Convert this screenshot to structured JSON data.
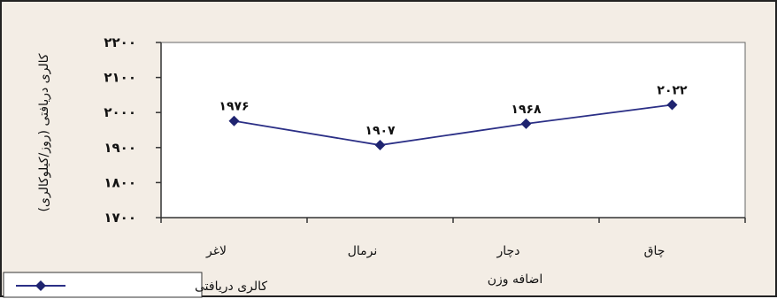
{
  "chart_data": {
    "type": "line",
    "categories": [
      "لاغر",
      "نرمال",
      "دچار",
      "چاق"
    ],
    "series": [
      {
        "name": "کالری دریافتی",
        "values": [
          1976,
          1907,
          1968,
          2022
        ],
        "labels": [
          "۱۹۷۶",
          "۱۹۰۷",
          "۱۹۶۸",
          "۲۰۲۲"
        ]
      }
    ],
    "yticks": [
      {
        "value": 1700,
        "label": "۱۷۰۰"
      },
      {
        "value": 1800,
        "label": "۱۸۰۰"
      },
      {
        "value": 1900,
        "label": "۱۹۰۰"
      },
      {
        "value": 2000,
        "label": "۲۰۰۰"
      },
      {
        "value": 2100,
        "label": "۲۱۰۰"
      },
      {
        "value": 2200,
        "label": "۲۲۰۰"
      }
    ],
    "ylim": [
      1700,
      2200
    ],
    "xlabel": "اضافه وزن",
    "ylabel": "کالری دریافتی (روز/کیلوکالری)",
    "grid": false,
    "legend": "bottom-left",
    "colors": {
      "line": "#2b2f86",
      "marker": "#1f2470",
      "plot_bg": "#ffffff",
      "frame_bg": "#f3ede5"
    }
  }
}
